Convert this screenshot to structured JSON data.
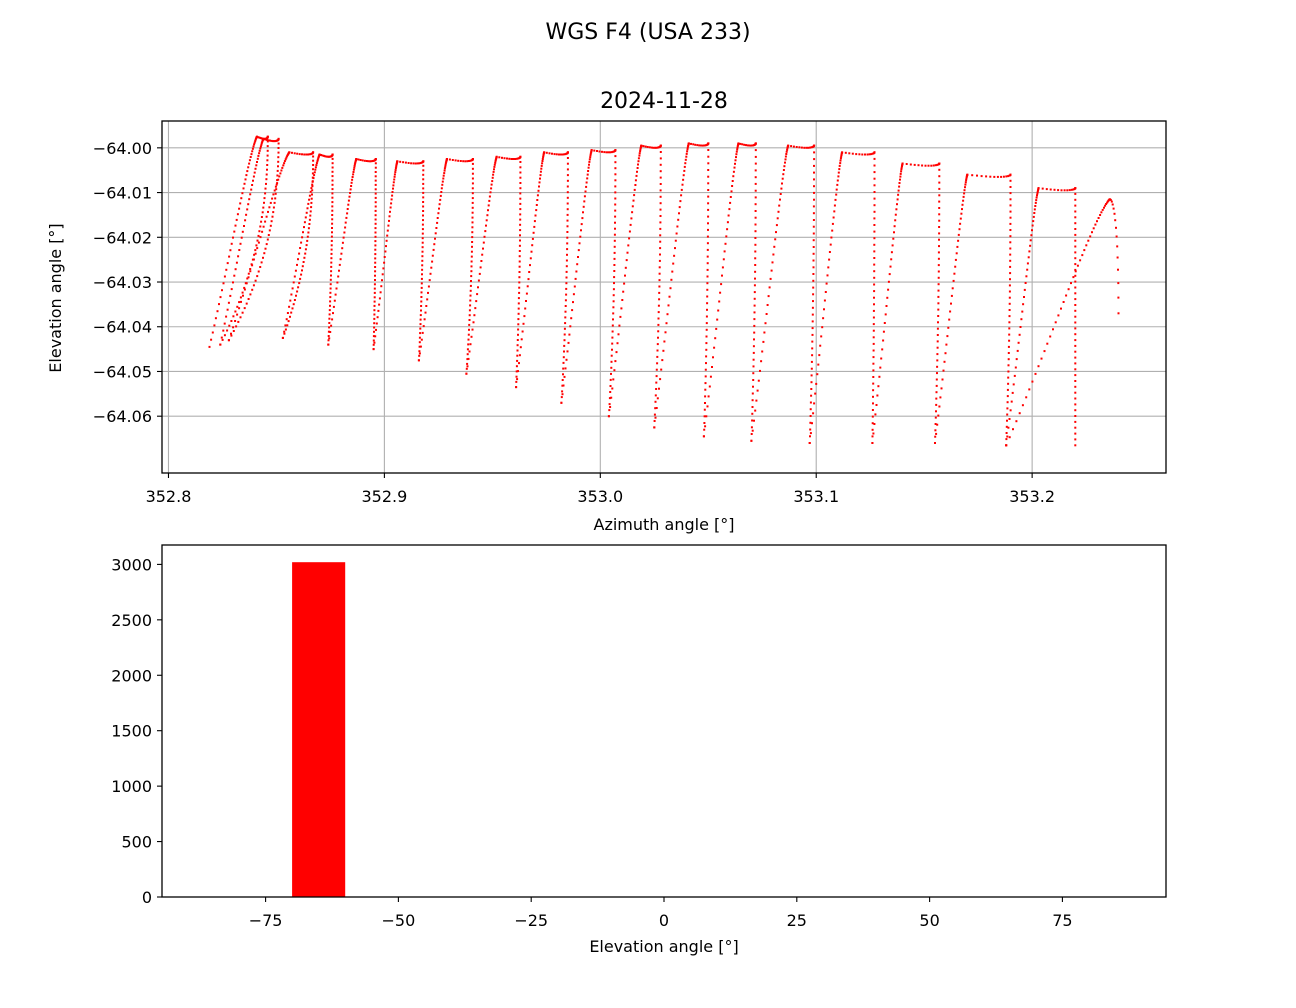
{
  "figure": {
    "suptitle": "WGS F4 (USA 233)"
  },
  "chart_data": [
    {
      "type": "scatter",
      "title": "2024-11-28",
      "xlabel": "Azimuth angle [°]",
      "ylabel": "Elevation angle [°]",
      "xlim": [
        352.797,
        353.262
      ],
      "ylim": [
        -64.0727,
        -63.994
      ],
      "xticks": [
        352.8,
        352.9,
        353.0,
        353.1,
        353.2
      ],
      "xtick_labels": [
        "352.8",
        "352.9",
        "353.0",
        "353.1",
        "353.2"
      ],
      "yticks": [
        -64.0,
        -64.01,
        -64.02,
        -64.03,
        -64.04,
        -64.05,
        -64.06
      ],
      "ytick_labels": [
        "−64.00",
        "−64.01",
        "−64.02",
        "−64.03",
        "−64.04",
        "−64.05",
        "−64.06"
      ],
      "grid": true,
      "color": "#ff0000",
      "marker": "point",
      "loops": [
        {
          "x_left": 352.819,
          "x_peak": 352.841,
          "x_right": 352.846,
          "y_top": -63.9975,
          "y_bottom": -64.0445
        },
        {
          "x_left": 352.824,
          "x_peak": 352.844,
          "x_right": 352.851,
          "y_top": -63.998,
          "y_bottom": -64.044
        },
        {
          "x_left": 352.828,
          "x_peak": 352.856,
          "x_right": 352.867,
          "y_top": -64.001,
          "y_bottom": -64.043
        },
        {
          "x_left": 352.853,
          "x_peak": 352.87,
          "x_right": 352.876,
          "y_top": -64.0015,
          "y_bottom": -64.0425
        },
        {
          "x_left": 352.874,
          "x_peak": 352.887,
          "x_right": 352.896,
          "y_top": -64.0025,
          "y_bottom": -64.044
        },
        {
          "x_left": 352.895,
          "x_peak": 352.906,
          "x_right": 352.918,
          "y_top": -64.003,
          "y_bottom": -64.045
        },
        {
          "x_left": 352.916,
          "x_peak": 352.929,
          "x_right": 352.941,
          "y_top": -64.0025,
          "y_bottom": -64.0475
        },
        {
          "x_left": 352.938,
          "x_peak": 352.952,
          "x_right": 352.963,
          "y_top": -64.002,
          "y_bottom": -64.0505
        },
        {
          "x_left": 352.961,
          "x_peak": 352.974,
          "x_right": 352.985,
          "y_top": -64.001,
          "y_bottom": -64.0535
        },
        {
          "x_left": 352.982,
          "x_peak": 352.996,
          "x_right": 353.007,
          "y_top": -64.0005,
          "y_bottom": -64.057
        },
        {
          "x_left": 353.004,
          "x_peak": 353.019,
          "x_right": 353.028,
          "y_top": -63.9995,
          "y_bottom": -64.06
        },
        {
          "x_left": 353.025,
          "x_peak": 353.041,
          "x_right": 353.05,
          "y_top": -63.999,
          "y_bottom": -64.0625
        },
        {
          "x_left": 353.048,
          "x_peak": 353.064,
          "x_right": 353.072,
          "y_top": -63.999,
          "y_bottom": -64.0645
        },
        {
          "x_left": 353.07,
          "x_peak": 353.087,
          "x_right": 353.099,
          "y_top": -63.9995,
          "y_bottom": -64.0655
        },
        {
          "x_left": 353.097,
          "x_peak": 353.112,
          "x_right": 353.127,
          "y_top": -64.001,
          "y_bottom": -64.066
        },
        {
          "x_left": 353.126,
          "x_peak": 353.14,
          "x_right": 353.157,
          "y_top": -64.0035,
          "y_bottom": -64.066
        },
        {
          "x_left": 353.155,
          "x_peak": 353.17,
          "x_right": 353.19,
          "y_top": -64.006,
          "y_bottom": -64.066
        },
        {
          "x_left": 353.188,
          "x_peak": 353.203,
          "x_right": 353.22,
          "y_top": -64.009,
          "y_bottom": -64.0665
        }
      ],
      "final_arc": {
        "x_start": 353.188,
        "x_peak": 353.236,
        "x_end": 353.24,
        "y_start": -64.0665,
        "y_top": -64.0115,
        "y_end": -64.037
      }
    },
    {
      "type": "bar",
      "title": "",
      "xlabel": "Elevation angle [°]",
      "ylabel": "",
      "xlim": [
        -94.5,
        94.5
      ],
      "ylim": [
        0,
        3175
      ],
      "xticks": [
        -75,
        -50,
        -25,
        0,
        25,
        50,
        75
      ],
      "xtick_labels": [
        "−75",
        "−50",
        "−25",
        "0",
        "25",
        "50",
        "75"
      ],
      "yticks": [
        0,
        500,
        1000,
        1500,
        2000,
        2500,
        3000
      ],
      "ytick_labels": [
        "0",
        "500",
        "1000",
        "1500",
        "2000",
        "2500",
        "3000"
      ],
      "grid": false,
      "color": "#ff0000",
      "bins": [
        {
          "x0": -70,
          "x1": -60,
          "count": 3020
        }
      ]
    }
  ]
}
